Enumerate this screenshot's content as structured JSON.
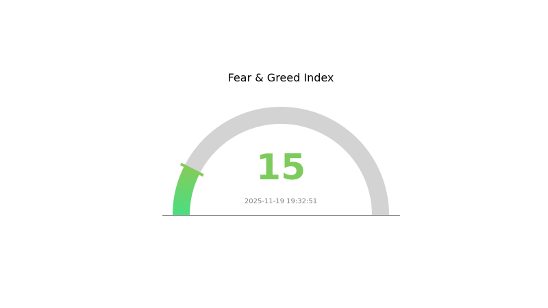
{
  "chart_data": {
    "type": "gauge",
    "title": "Fear & Greed Index",
    "value": 15,
    "value_label": "15",
    "range": [
      0,
      100
    ],
    "timestamp": "2025-11-19 19:32:51",
    "colors": {
      "fill_start": "#4ade80",
      "fill_end": "#84cc5a",
      "track": "#d3d3d3",
      "value_text": "#7dcb5c",
      "timestamp_text": "#808080",
      "baseline": "#666666"
    }
  }
}
